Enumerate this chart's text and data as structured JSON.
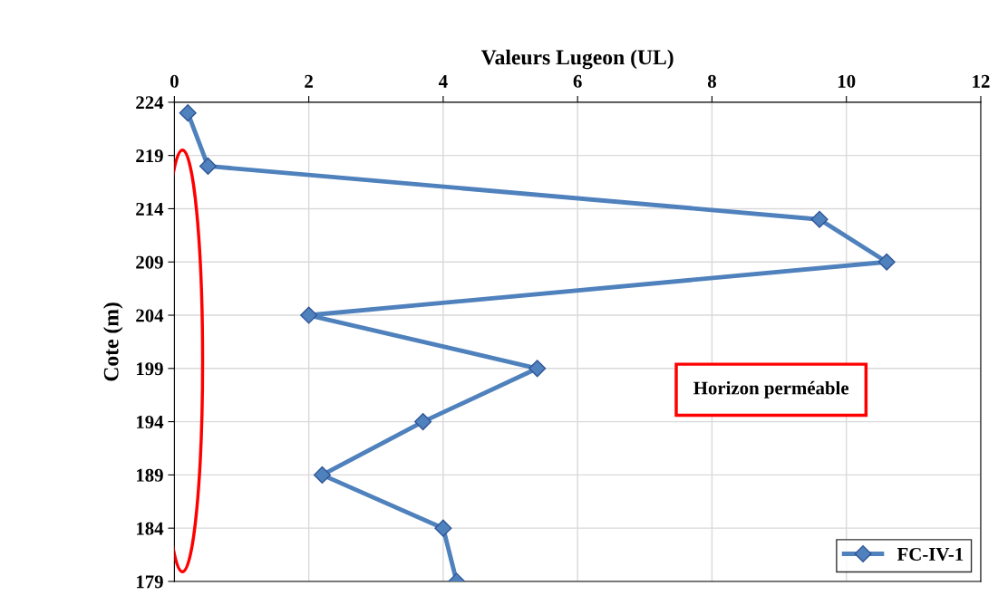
{
  "chart_data": {
    "type": "line",
    "xlabel": "Valeurs Lugeon (UL)",
    "ylabel": "Cote (m)",
    "x": [
      0.2,
      0.5,
      9.6,
      10.6,
      2.0,
      5.4,
      3.7,
      2.2,
      4.0,
      4.2
    ],
    "series": [
      {
        "name": "FC-IV-1",
        "color": "#4f81bd",
        "values": [
          223,
          218,
          213,
          209,
          204,
          199,
          194,
          189,
          184,
          179
        ]
      }
    ],
    "xlim": [
      0,
      12
    ],
    "xticks": [
      0,
      2,
      4,
      6,
      8,
      10,
      12
    ],
    "ylim": [
      179,
      224
    ],
    "yticks": [
      179,
      184,
      189,
      194,
      199,
      204,
      209,
      214,
      219,
      224
    ],
    "grid": true,
    "legend": "bottom right",
    "marker": "diamond",
    "line_style": "solid",
    "annotations": [
      "Horizon perméable"
    ]
  }
}
